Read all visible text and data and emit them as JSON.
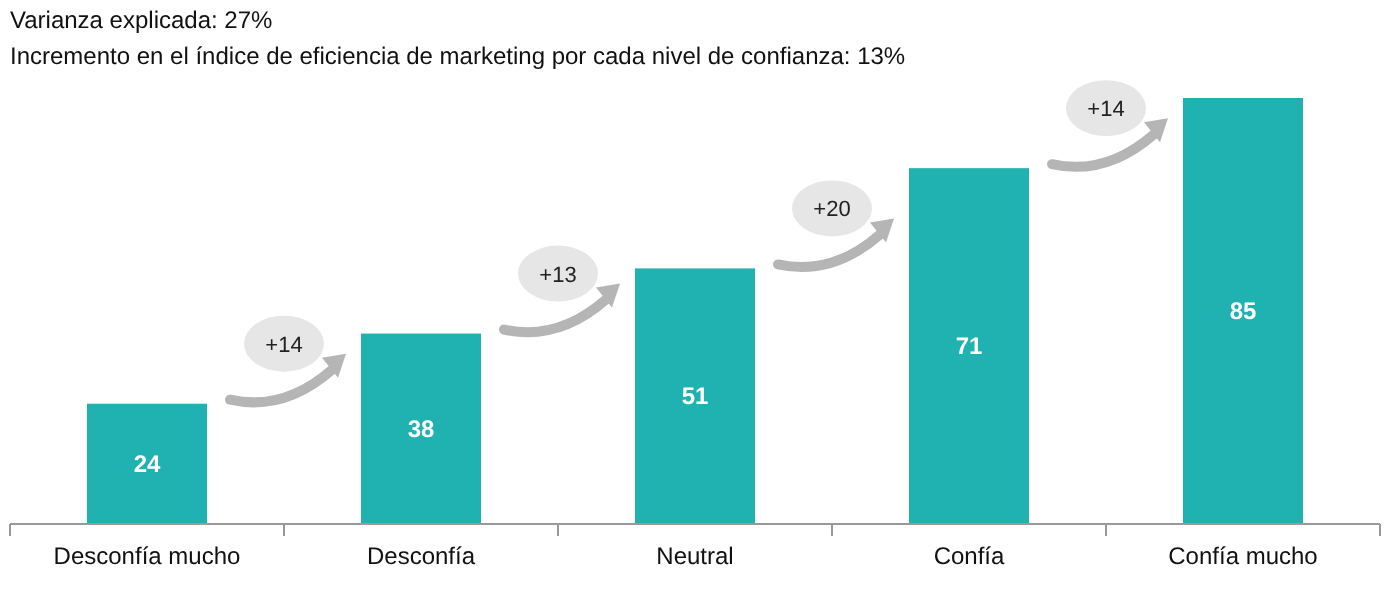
{
  "chart_data": {
    "type": "bar",
    "title": "Varianza explicada: 27%",
    "subtitle": "Incremento en el índice de eficiencia de marketing por cada nivel de confianza: 13%",
    "categories": [
      "Desconfía mucho",
      "Desconfía",
      "Neutral",
      "Confía",
      "Confía mucho"
    ],
    "values": [
      24,
      38,
      51,
      71,
      85
    ],
    "color": "#20b2b0",
    "data_labels": true,
    "annotations": [
      "+14",
      "+13",
      "+20",
      "+14"
    ]
  }
}
